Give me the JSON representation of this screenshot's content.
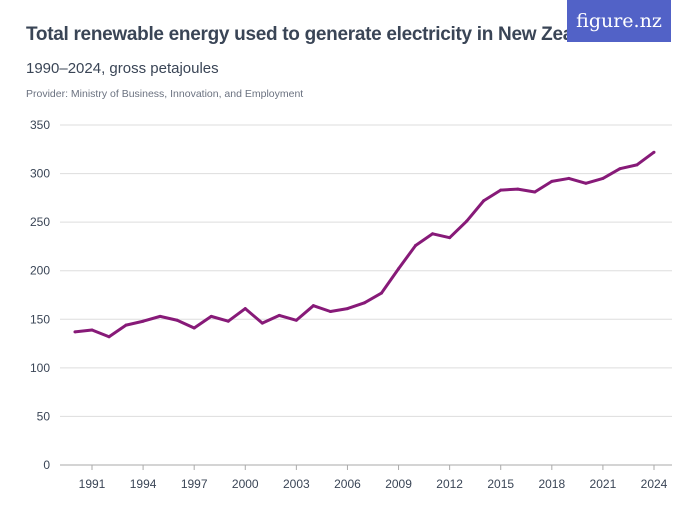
{
  "header": {
    "title": "Total renewable energy used to generate electricity in New Zealand",
    "subtitle": "1990–2024, gross petajoules",
    "provider": "Provider: Ministry of Business, Innovation, and Employment",
    "logo": "figure.nz"
  },
  "colors": {
    "line": "#871a78",
    "logo_bg": "#5262c7",
    "grid": "#dddddd"
  },
  "chart_data": {
    "type": "line",
    "title": "Total renewable energy used to generate electricity in New Zealand",
    "subtitle": "1990–2024, gross petajoules",
    "xlabel": "",
    "ylabel": "",
    "ylim": [
      0,
      350
    ],
    "yticks": [
      0,
      50,
      100,
      150,
      200,
      250,
      300,
      350
    ],
    "xticks": [
      1991,
      1994,
      1997,
      2000,
      2003,
      2006,
      2009,
      2012,
      2015,
      2018,
      2021,
      2024
    ],
    "grid": true,
    "x": [
      1990,
      1991,
      1992,
      1993,
      1994,
      1995,
      1996,
      1997,
      1998,
      1999,
      2000,
      2001,
      2002,
      2003,
      2004,
      2005,
      2006,
      2007,
      2008,
      2009,
      2010,
      2011,
      2012,
      2013,
      2014,
      2015,
      2016,
      2017,
      2018,
      2019,
      2020,
      2021,
      2022,
      2023,
      2024
    ],
    "series": [
      {
        "values": [
          137,
          139,
          132,
          144,
          148,
          153,
          149,
          141,
          153,
          148,
          161,
          146,
          154,
          149,
          164,
          158,
          161,
          167,
          177,
          202,
          226,
          238,
          234,
          251,
          272,
          283,
          284,
          281,
          292,
          295,
          290,
          295,
          305,
          309,
          322
        ]
      }
    ]
  }
}
